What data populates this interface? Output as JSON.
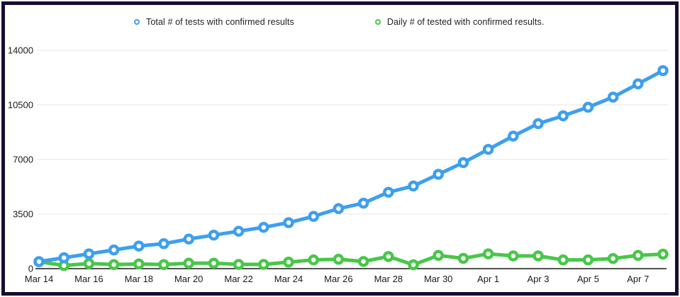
{
  "frame": {
    "border_color": "#190b33",
    "background": "#ffffff"
  },
  "legend": {
    "items": [
      {
        "label": "Total # of tests with confirmed results",
        "color": "#3d9ff0"
      },
      {
        "label": "Daily # of tested with confirmed results.",
        "color": "#48c748"
      }
    ]
  },
  "chart_data": {
    "type": "line",
    "title": "",
    "xlabel": "",
    "ylabel": "",
    "x": [
      "Mar 14",
      "Mar 15",
      "Mar 16",
      "Mar 17",
      "Mar 18",
      "Mar 19",
      "Mar 20",
      "Mar 21",
      "Mar 22",
      "Mar 23",
      "Mar 24",
      "Mar 25",
      "Mar 26",
      "Mar 27",
      "Mar 28",
      "Mar 29",
      "Mar 30",
      "Mar 31",
      "Apr 1",
      "Apr 2",
      "Apr 3",
      "Apr 4",
      "Apr 5",
      "Apr 6",
      "Apr 7",
      "Apr 8"
    ],
    "x_tick_label_every": 2,
    "series": [
      {
        "name": "Total # of tests with confirmed results",
        "color": "#3d9ff0",
        "marker": "open-circle",
        "values": [
          450,
          700,
          950,
          1200,
          1450,
          1600,
          1900,
          2150,
          2400,
          2650,
          2950,
          3350,
          3850,
          4200,
          4900,
          5300,
          6050,
          6800,
          7650,
          8500,
          9300,
          9800,
          10350,
          11000,
          11850,
          12700
        ]
      },
      {
        "name": "Daily # of tested with confirmed results.",
        "color": "#48c748",
        "marker": "open-circle",
        "values": [
          450,
          200,
          330,
          260,
          300,
          260,
          350,
          350,
          270,
          270,
          420,
          560,
          600,
          460,
          780,
          250,
          850,
          660,
          950,
          820,
          820,
          560,
          560,
          650,
          850,
          930
        ]
      }
    ],
    "y_ticks": [
      0,
      3500,
      7000,
      10500,
      14000
    ],
    "ylim": [
      0,
      14000
    ],
    "grid": "horizontal",
    "grid_color": "#e6e6e6",
    "axis_line_color": "#1a1a1a",
    "legend_position": "top"
  }
}
